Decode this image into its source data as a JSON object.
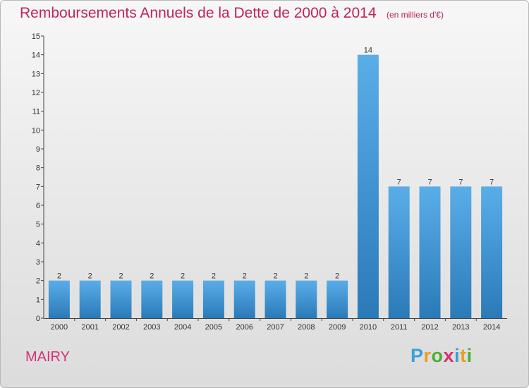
{
  "title": "Remboursements Annuels de la Dette de 2000 à 2014",
  "subtitle": "(en milliers d'€)",
  "commune": "MAIRY",
  "logo": [
    "P",
    "r",
    "o",
    "x",
    "i",
    "t",
    "i"
  ],
  "colors": {
    "title": "#c0245a",
    "bar_top": "#5aaee8",
    "bar_bottom": "#2a7ab8"
  },
  "chart_data": {
    "type": "bar",
    "categories": [
      "2000",
      "2001",
      "2002",
      "2003",
      "2004",
      "2005",
      "2006",
      "2007",
      "2008",
      "2009",
      "2010",
      "2011",
      "2012",
      "2013",
      "2014"
    ],
    "values": [
      2,
      2,
      2,
      2,
      2,
      2,
      2,
      2,
      2,
      2,
      14,
      7,
      7,
      7,
      7
    ],
    "data_labels": [
      "2",
      "2",
      "2",
      "2",
      "2",
      "2",
      "2",
      "2",
      "2",
      "2",
      "14",
      "7",
      "7",
      "7",
      "7"
    ],
    "yticks": [
      "0",
      "1",
      "2",
      "3",
      "4",
      "5",
      "6",
      "7",
      "8",
      "9",
      "10",
      "11",
      "12",
      "13",
      "14",
      "15"
    ],
    "ylim": [
      0,
      15
    ],
    "grid": false,
    "legend": "none"
  }
}
